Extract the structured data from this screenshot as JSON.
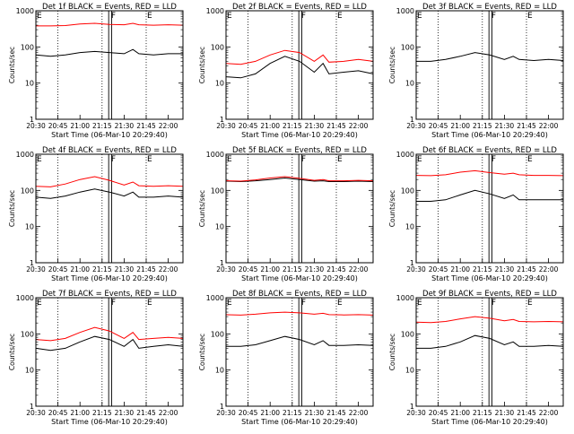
{
  "chart_data": {
    "type": "line",
    "grid_layout": "3x3",
    "y_scale": "log",
    "ylim": [
      1,
      1000
    ],
    "y_ticks": [
      1,
      10,
      100,
      1000
    ],
    "ylabel": "Counts/sec",
    "xlabel": "Start Time (06-Mar-10 20:29:40)",
    "x_ticks": [
      "20:30",
      "20:45",
      "21:00",
      "21:15",
      "21:30",
      "21:45",
      "22:00"
    ],
    "xlim_minutes": [
      0,
      100
    ],
    "tick_minutes": [
      0,
      15,
      30,
      45,
      60,
      75,
      90
    ],
    "dotted_minutes": [
      15,
      45,
      75
    ],
    "box_minutes": [
      49.5,
      51.5
    ],
    "markers": [
      {
        "label": "E",
        "minute": 0
      },
      {
        "label": "F",
        "minute": 50.5
      },
      {
        "label": "E",
        "minute": 75
      }
    ],
    "colors": {
      "events": "#000000",
      "lld": "#ff0000"
    },
    "panels": [
      {
        "title": "Det 1f BLACK = Events, RED = LLD",
        "series": [
          {
            "color": "events",
            "x": [
              0,
              10,
              20,
              30,
              40,
              50,
              60,
              66,
              70,
              80,
              90,
              100
            ],
            "y": [
              60,
              55,
              60,
              70,
              75,
              70,
              65,
              85,
              65,
              60,
              65,
              65
            ]
          },
          {
            "color": "lld",
            "x": [
              0,
              10,
              20,
              30,
              40,
              50,
              60,
              66,
              70,
              80,
              90,
              100
            ],
            "y": [
              380,
              380,
              390,
              430,
              450,
              420,
              410,
              450,
              410,
              400,
              410,
              400
            ]
          }
        ]
      },
      {
        "title": "Det 2f BLACK = Events, RED = LLD",
        "series": [
          {
            "color": "events",
            "x": [
              0,
              10,
              20,
              30,
              40,
              50,
              60,
              66,
              70,
              80,
              90,
              100
            ],
            "y": [
              15,
              14,
              18,
              35,
              55,
              40,
              20,
              35,
              18,
              20,
              22,
              18
            ]
          },
          {
            "color": "lld",
            "x": [
              0,
              10,
              20,
              30,
              40,
              50,
              60,
              66,
              70,
              80,
              90,
              100
            ],
            "y": [
              35,
              33,
              40,
              60,
              80,
              70,
              40,
              60,
              38,
              40,
              45,
              40
            ]
          }
        ]
      },
      {
        "title": "Det 3f BLACK = Events, RED = LLD",
        "series": [
          {
            "color": "events",
            "x": [
              0,
              10,
              20,
              30,
              40,
              50,
              60,
              66,
              70,
              80,
              90,
              100
            ],
            "y": [
              40,
              40,
              45,
              55,
              70,
              60,
              45,
              55,
              45,
              42,
              45,
              42
            ]
          }
        ]
      },
      {
        "title": "Det 4f BLACK = Events, RED = LLD",
        "series": [
          {
            "color": "events",
            "x": [
              0,
              10,
              20,
              30,
              40,
              50,
              60,
              66,
              70,
              80,
              90,
              100
            ],
            "y": [
              65,
              60,
              70,
              90,
              110,
              90,
              70,
              90,
              65,
              65,
              70,
              65
            ]
          },
          {
            "color": "lld",
            "x": [
              0,
              10,
              20,
              30,
              40,
              50,
              60,
              66,
              70,
              80,
              90,
              100
            ],
            "y": [
              130,
              125,
              150,
              200,
              240,
              190,
              140,
              170,
              135,
              130,
              135,
              130
            ]
          }
        ]
      },
      {
        "title": "Det 5f BLACK = Events, RED = LLD",
        "series": [
          {
            "color": "events",
            "x": [
              0,
              10,
              20,
              30,
              40,
              50,
              60,
              66,
              70,
              80,
              90,
              100
            ],
            "y": [
              180,
              175,
              185,
              200,
              220,
              200,
              180,
              185,
              175,
              175,
              180,
              175
            ]
          },
          {
            "color": "lld",
            "x": [
              0,
              10,
              20,
              30,
              40,
              50,
              60,
              66,
              70,
              80,
              90,
              100
            ],
            "y": [
              185,
              180,
              195,
              220,
              240,
              215,
              190,
              200,
              185,
              185,
              190,
              185
            ]
          }
        ]
      },
      {
        "title": "Det 6f BLACK = Events, RED = LLD",
        "series": [
          {
            "color": "events",
            "x": [
              0,
              10,
              20,
              30,
              40,
              50,
              60,
              66,
              70,
              80,
              90,
              100
            ],
            "y": [
              50,
              50,
              55,
              75,
              100,
              80,
              60,
              75,
              55,
              55,
              55,
              55
            ]
          },
          {
            "color": "lld",
            "x": [
              0,
              10,
              20,
              30,
              40,
              50,
              60,
              66,
              70,
              80,
              90,
              100
            ],
            "y": [
              260,
              255,
              270,
              320,
              350,
              310,
              280,
              300,
              270,
              260,
              260,
              255
            ]
          }
        ]
      },
      {
        "title": "Det 7f BLACK = Events, RED = LLD",
        "series": [
          {
            "color": "events",
            "x": [
              0,
              10,
              20,
              30,
              40,
              50,
              60,
              66,
              70,
              80,
              90,
              100
            ],
            "y": [
              40,
              35,
              40,
              60,
              85,
              70,
              45,
              70,
              40,
              45,
              50,
              45
            ]
          },
          {
            "color": "lld",
            "x": [
              0,
              10,
              20,
              30,
              40,
              50,
              60,
              66,
              70,
              80,
              90,
              100
            ],
            "y": [
              70,
              65,
              75,
              110,
              150,
              120,
              75,
              110,
              70,
              75,
              80,
              75
            ]
          }
        ]
      },
      {
        "title": "Det 8f BLACK = Events, RED = LLD",
        "series": [
          {
            "color": "events",
            "x": [
              0,
              10,
              20,
              30,
              40,
              50,
              60,
              66,
              70,
              80,
              90,
              100
            ],
            "y": [
              45,
              45,
              50,
              65,
              85,
              70,
              50,
              65,
              48,
              48,
              50,
              48
            ]
          },
          {
            "color": "lld",
            "x": [
              0,
              10,
              20,
              30,
              40,
              50,
              60,
              66,
              70,
              80,
              90,
              100
            ],
            "y": [
              340,
              330,
              350,
              380,
              400,
              380,
              350,
              370,
              340,
              335,
              340,
              330
            ]
          }
        ]
      },
      {
        "title": "Det 9f BLACK = Events, RED = LLD",
        "series": [
          {
            "color": "events",
            "x": [
              0,
              10,
              20,
              30,
              40,
              50,
              60,
              66,
              70,
              80,
              90,
              100
            ],
            "y": [
              40,
              40,
              45,
              60,
              90,
              75,
              50,
              60,
              45,
              45,
              48,
              45
            ]
          },
          {
            "color": "lld",
            "x": [
              0,
              10,
              20,
              30,
              40,
              50,
              60,
              66,
              70,
              80,
              90,
              100
            ],
            "y": [
              210,
              205,
              220,
              260,
              300,
              270,
              230,
              250,
              220,
              215,
              220,
              215
            ]
          }
        ]
      }
    ]
  }
}
